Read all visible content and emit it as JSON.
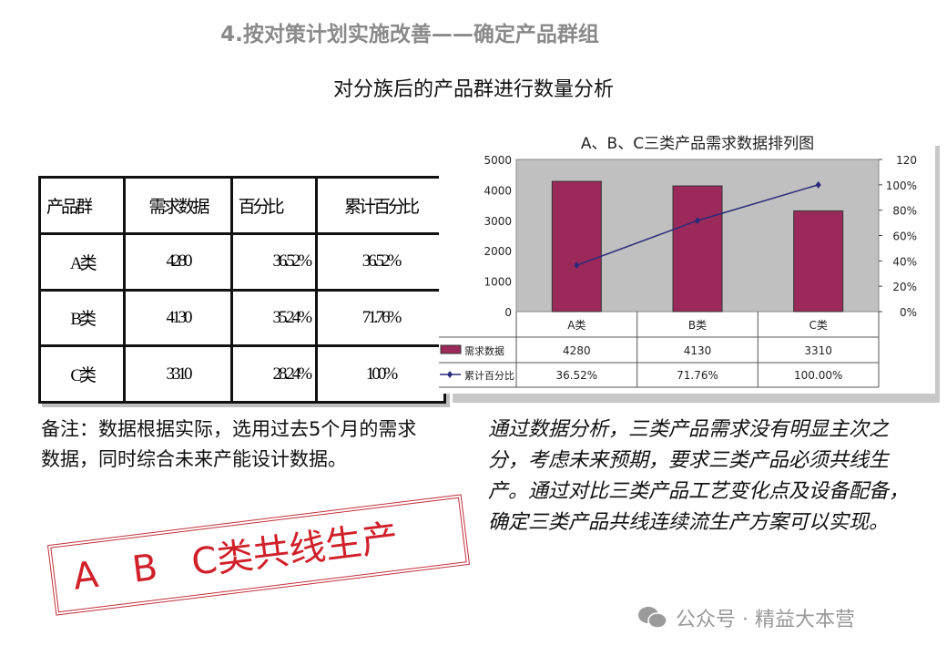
{
  "title": "4.按对策计划实施改善——确定产品群组",
  "subtitle": "对分族后的产品群进行数量分析",
  "table": {
    "headers": [
      "产品群",
      "需求数据",
      "百分比",
      "累计百分比"
    ],
    "rows": [
      [
        "A类",
        "4280",
        "36.52%",
        "36.52%"
      ],
      [
        "B类",
        "4130",
        "35.24%",
        "71.76%"
      ],
      [
        "C类",
        "3310",
        "28.24%",
        "100%"
      ]
    ]
  },
  "note": "备注：数据根据实际，选用过去5个月的需求数据，同时综合未来产能设计数据。",
  "conclusion": "通过数据分析，三类产品需求没有明显主次之分，考虑未来预期，要求三类产品必须共线生产。通过对比三类产品工艺变化点及设备配备，确定三类产品共线连续流生产方案可以实现。",
  "stamp": "A   B   C类共线生产",
  "footer": {
    "icon": "wechat-icon",
    "text": "公众号 · 精益大本营"
  },
  "chart_data": {
    "type": "bar",
    "title": "A、B、C三类产品需求数据排列图",
    "categories": [
      "A类",
      "B类",
      "C类"
    ],
    "series": [
      {
        "name": "需求数据",
        "type": "bar",
        "axis": "left",
        "values": [
          4280,
          4130,
          3310
        ],
        "labels": [
          "4280",
          "4130",
          "3310"
        ],
        "color": "#9b2a5a"
      },
      {
        "name": "累计百分比",
        "type": "line",
        "axis": "right",
        "values": [
          36.52,
          71.76,
          100.0
        ],
        "labels": [
          "36.52%",
          "71.76%",
          "100.00%"
        ],
        "color": "#2a2a7a"
      }
    ],
    "ylim": [
      0,
      5000
    ],
    "yticks": [
      "0",
      "1000",
      "2000",
      "3000",
      "4000",
      "5000"
    ],
    "y2lim": [
      0,
      120
    ],
    "y2ticks": [
      "0%",
      "20%",
      "40%",
      "60%",
      "80%",
      "100%",
      "120"
    ],
    "grid": false,
    "plot_background": "#c0c0c0",
    "legend": "data-table"
  }
}
